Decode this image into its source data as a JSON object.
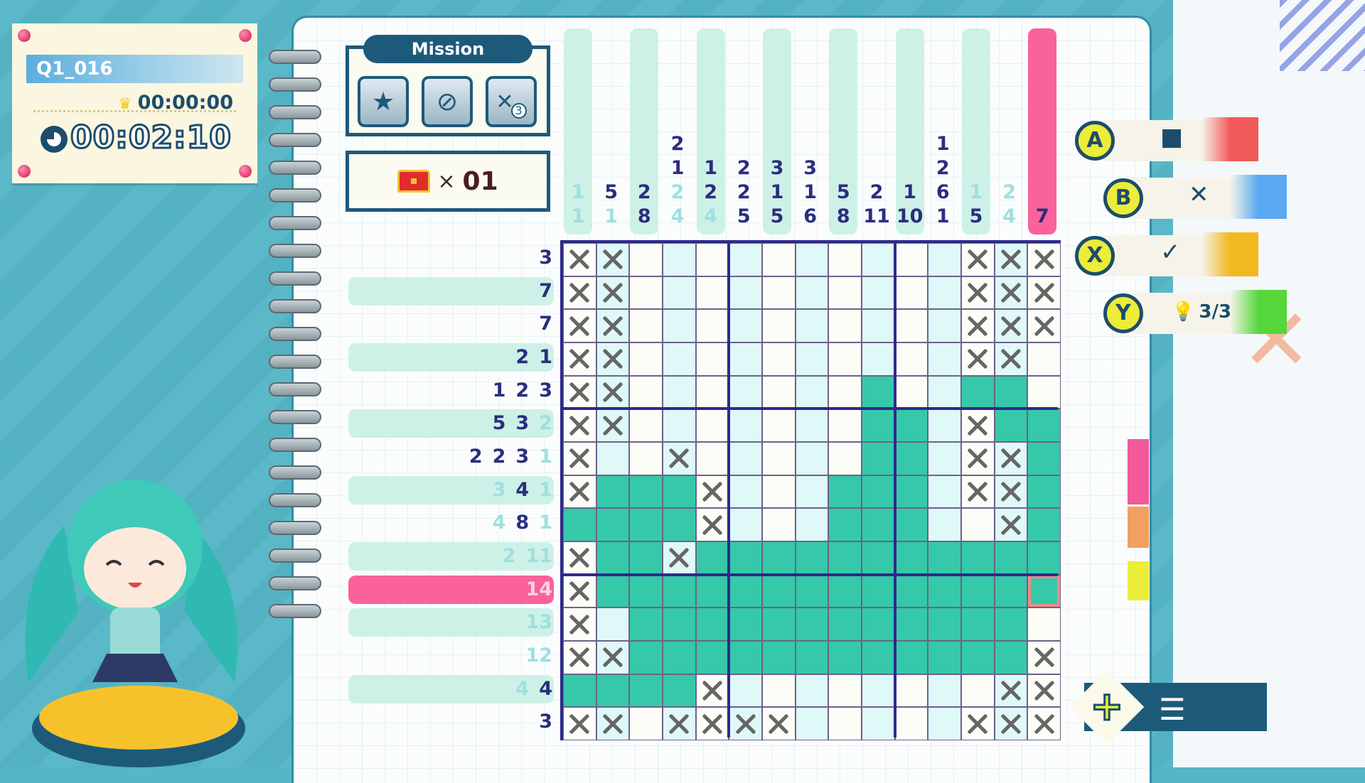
{
  "puzzle_id": "Q1_016",
  "best_time": "00:00:00",
  "elapsed_time": "00:02:10",
  "mission": {
    "title": "Mission",
    "icons": [
      "star-icon",
      "no-hint-icon",
      "mistakes-limit-icon"
    ],
    "mistake_limit": "3"
  },
  "reward": {
    "icon": "treasure-chest-icon",
    "times": "×",
    "count": "01"
  },
  "colors": {
    "filled": "#35c9a9",
    "highlight": "#f9629a",
    "clue": "#2b2d7f",
    "clue_done": "#9fdfe0",
    "cursor": "#f08a8a"
  },
  "column_clues": [
    [
      {
        "n": "1",
        "done": true
      },
      {
        "n": "1",
        "done": true
      }
    ],
    [
      {
        "n": "5"
      },
      {
        "n": "1",
        "done": true
      }
    ],
    [
      {
        "n": "2"
      },
      {
        "n": "8"
      }
    ],
    [
      {
        "n": "2"
      },
      {
        "n": "1"
      },
      {
        "n": "2",
        "done": true
      },
      {
        "n": "4",
        "done": true
      }
    ],
    [
      {
        "n": "1"
      },
      {
        "n": "2"
      },
      {
        "n": "4",
        "done": true
      }
    ],
    [
      {
        "n": "2"
      },
      {
        "n": "2"
      },
      {
        "n": "5"
      }
    ],
    [
      {
        "n": "3"
      },
      {
        "n": "1"
      },
      {
        "n": "5"
      }
    ],
    [
      {
        "n": "3"
      },
      {
        "n": "1"
      },
      {
        "n": "6"
      }
    ],
    [
      {
        "n": "5"
      },
      {
        "n": "8"
      }
    ],
    [
      {
        "n": "2"
      },
      {
        "n": "11"
      }
    ],
    [
      {
        "n": "1"
      },
      {
        "n": "10"
      }
    ],
    [
      {
        "n": "1"
      },
      {
        "n": "2"
      },
      {
        "n": "6"
      },
      {
        "n": "1"
      }
    ],
    [
      {
        "n": "1",
        "done": true
      },
      {
        "n": "5"
      }
    ],
    [
      {
        "n": "2",
        "done": true
      },
      {
        "n": "4",
        "done": true
      }
    ],
    [
      {
        "n": "7"
      }
    ]
  ],
  "row_clues": [
    [
      {
        "n": "3"
      }
    ],
    [
      {
        "n": "7"
      }
    ],
    [
      {
        "n": "7"
      }
    ],
    [
      {
        "n": "2"
      },
      {
        "n": "1"
      }
    ],
    [
      {
        "n": "1"
      },
      {
        "n": "2"
      },
      {
        "n": "3"
      }
    ],
    [
      {
        "n": "5"
      },
      {
        "n": "3"
      },
      {
        "n": "2",
        "done": true
      }
    ],
    [
      {
        "n": "2"
      },
      {
        "n": "2"
      },
      {
        "n": "3"
      },
      {
        "n": "1",
        "done": true
      }
    ],
    [
      {
        "n": "3",
        "done": true
      },
      {
        "n": "4"
      },
      {
        "n": "1",
        "done": true
      }
    ],
    [
      {
        "n": "4",
        "done": true
      },
      {
        "n": "8"
      },
      {
        "n": "1",
        "done": true
      }
    ],
    [
      {
        "n": "2",
        "done": true
      },
      {
        "n": "11",
        "done": true
      }
    ],
    [
      {
        "n": "14",
        "done": true
      }
    ],
    [
      {
        "n": "13",
        "done": true
      }
    ],
    [
      {
        "n": "12",
        "done": true
      }
    ],
    [
      {
        "n": "4",
        "done": true
      },
      {
        "n": "4"
      }
    ],
    [
      {
        "n": "3"
      }
    ]
  ],
  "active_row": 10,
  "active_column": 14,
  "grid": [
    "xx..........xxx",
    "xx..........xxx",
    "xx..........xxx",
    "xx..........xx.",
    "xx.......#..##.",
    "xx.......##.x##",
    "x..x.....##.xx#",
    "x###x...###.xx#",
    "####x...###..x#",
    "x##x###########",
    "x##############",
    "x.############.",
    "xx############x",
    "####x........xx",
    "xx.xxxx.....xxx"
  ],
  "controls": [
    {
      "button": "A",
      "action_icon": "fill-square-icon",
      "glyph": "■",
      "color": "#f25a5a"
    },
    {
      "button": "B",
      "action_icon": "cross-mark-icon",
      "glyph": "✕",
      "color": "#5aa8f0"
    },
    {
      "button": "X",
      "action_icon": "check-icon",
      "glyph": "✓",
      "color": "#f2b820"
    },
    {
      "button": "Y",
      "action_icon": "hint-bulb-icon",
      "glyph": "💡",
      "hints": "3/3",
      "color": "#55d63a"
    }
  ],
  "menu": {
    "button": "+",
    "icon": "menu-list-icon",
    "glyph": "☰"
  }
}
